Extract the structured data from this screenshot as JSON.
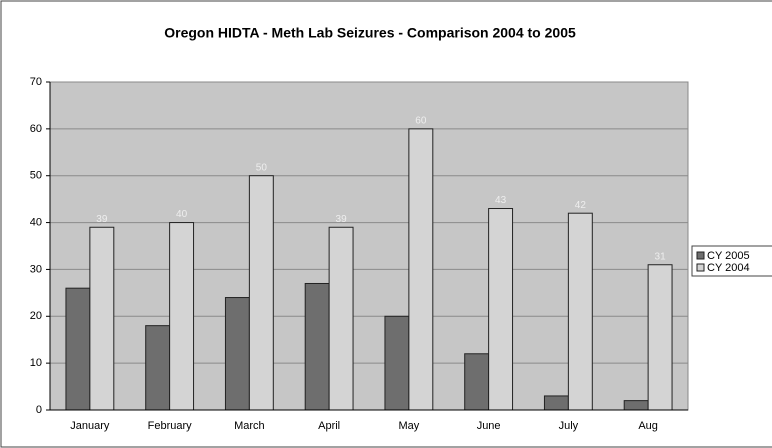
{
  "chart_data": {
    "type": "bar",
    "title": "Oregon HIDTA - Meth Lab Seizures - Comparison 2004 to 2005",
    "categories": [
      "January",
      "February",
      "March",
      "April",
      "May",
      "June",
      "July",
      "Aug"
    ],
    "series": [
      {
        "name": "CY 2005",
        "color": "#6e6e6e",
        "values": [
          26,
          18,
          24,
          27,
          20,
          12,
          3,
          2
        ],
        "data_labels": false
      },
      {
        "name": "CY 2004",
        "color": "#d4d4d4",
        "values": [
          39,
          40,
          50,
          39,
          60,
          43,
          42,
          31
        ],
        "data_labels": true
      }
    ],
    "ylim": [
      0,
      70
    ],
    "yticks": [
      0,
      10,
      20,
      30,
      40,
      50,
      60,
      70
    ],
    "grid": true,
    "legend": "right"
  }
}
